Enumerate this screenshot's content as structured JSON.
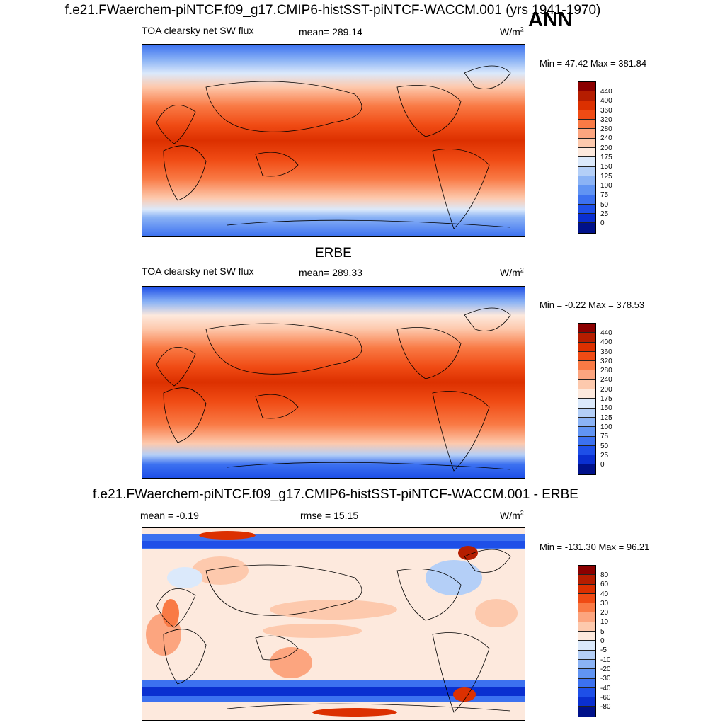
{
  "title": "f.e21.FWaerchem-piNTCF.f09_g17.CMIP6-histSST-piNTCF-WACCM.001 (yrs 1941-1970)",
  "season": "ANN",
  "panels": [
    {
      "label": "TOA clearsky net SW flux",
      "stat": "mean= 289.14",
      "units": "W/m",
      "units_sup": "2",
      "minmax": "Min =  47.42 Max = 381.84",
      "colorbar": {
        "colors": [
          "#8b0000",
          "#b51d00",
          "#dc3000",
          "#f04b14",
          "#f97a45",
          "#fca57f",
          "#fdc9ad",
          "#fde9dd",
          "#dbe9fb",
          "#b4cff7",
          "#8bb3f5",
          "#6194f3",
          "#3c71f0",
          "#1e4fe8",
          "#0a2fd0",
          "#00118a"
        ],
        "ticks": [
          "440",
          "400",
          "360",
          "320",
          "280",
          "240",
          "200",
          "175",
          "150",
          "125",
          "100",
          "75",
          "50",
          "25",
          "0"
        ]
      }
    },
    {
      "subtitle": "ERBE",
      "label": "TOA clearsky net SW flux",
      "stat": "mean= 289.33",
      "units": "W/m",
      "units_sup": "2",
      "minmax": "Min =  -0.22 Max = 378.53",
      "colorbar": {
        "colors": [
          "#8b0000",
          "#b51d00",
          "#dc3000",
          "#f04b14",
          "#f97a45",
          "#fca57f",
          "#fdc9ad",
          "#fde9dd",
          "#dbe9fb",
          "#b4cff7",
          "#8bb3f5",
          "#6194f3",
          "#3c71f0",
          "#1e4fe8",
          "#0a2fd0",
          "#00118a"
        ],
        "ticks": [
          "440",
          "400",
          "360",
          "320",
          "280",
          "240",
          "200",
          "175",
          "150",
          "125",
          "100",
          "75",
          "50",
          "25",
          "0"
        ]
      }
    },
    {
      "subtitle": "f.e21.FWaerchem-piNTCF.f09_g17.CMIP6-histSST-piNTCF-WACCM.001 - ERBE",
      "label": "mean =  -0.19",
      "stat": "rmse =  15.15",
      "units": "W/m",
      "units_sup": "2",
      "minmax": "Min = -131.30 Max =  96.21",
      "colorbar": {
        "colors": [
          "#8b0000",
          "#b51d00",
          "#dc3000",
          "#f04b14",
          "#f97a45",
          "#fca57f",
          "#fdc9ad",
          "#fde9dd",
          "#dbe9fb",
          "#b4cff7",
          "#8bb3f5",
          "#6194f3",
          "#3c71f0",
          "#1e4fe8",
          "#0a2fd0",
          "#00118a"
        ],
        "ticks": [
          "80",
          "60",
          "40",
          "30",
          "20",
          "10",
          "5",
          "0",
          "-5",
          "-10",
          "-20",
          "-30",
          "-40",
          "-60",
          "-80"
        ]
      }
    }
  ]
}
